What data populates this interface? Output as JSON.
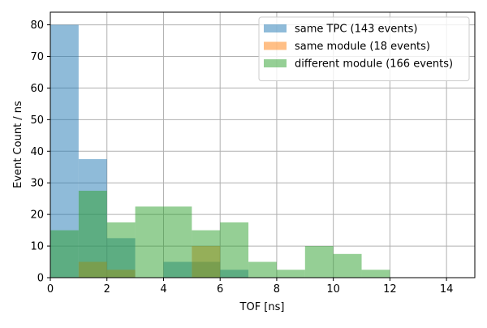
{
  "chart_data": {
    "type": "bar",
    "xlabel": "TOF [ns]",
    "ylabel": "Event Count / ns",
    "xlim": [
      0,
      15
    ],
    "ylim": [
      0,
      84
    ],
    "x_ticks": [
      0,
      2,
      4,
      6,
      8,
      10,
      12,
      14
    ],
    "y_ticks": [
      0,
      10,
      20,
      30,
      40,
      50,
      60,
      70,
      80
    ],
    "grid": true,
    "legend_position": "top-right",
    "bin_edges": [
      0,
      1,
      2,
      3,
      4,
      5,
      6,
      7,
      8,
      9,
      10,
      11,
      12,
      13,
      14,
      15
    ],
    "series": [
      {
        "name": "same TPC (143 events)",
        "color": "#1f77b4",
        "values": [
          80,
          37.5,
          12.5,
          0,
          5,
          5,
          2.5,
          0,
          0,
          0,
          0,
          0,
          0,
          0,
          0
        ]
      },
      {
        "name": "same module (18 events)",
        "color": "#ff7f0e",
        "values": [
          0,
          5,
          2.5,
          0,
          0,
          10,
          0,
          0,
          0,
          0,
          0,
          0,
          0,
          0,
          0
        ]
      },
      {
        "name": "different module (166 events)",
        "color": "#2ca02c",
        "values": [
          15,
          27.5,
          17.5,
          22.5,
          22.5,
          15,
          17.5,
          5,
          2.5,
          10,
          7.5,
          2.5,
          0,
          0,
          0
        ]
      }
    ]
  }
}
